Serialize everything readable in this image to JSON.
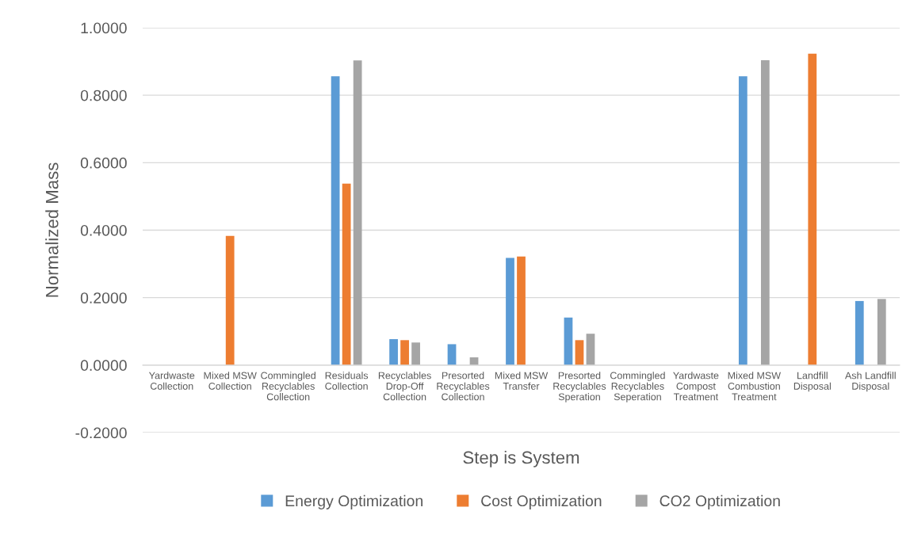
{
  "chart_data": {
    "type": "bar",
    "xlabel": "Step is System",
    "ylabel": "Normalized Mass",
    "categories": [
      "Yardwaste\nCollection",
      "Mixed MSW\nCollection",
      "Commingled\nRecyclables\nCollection",
      "Residuals\nCollection",
      "Recyclables\nDrop-Off\nCollection",
      "Presorted\nRecyclables\nCollection",
      "Mixed MSW\nTransfer",
      "Presorted\nRecyclables\nSperation",
      "Commingled\nRecyclables\nSeperation",
      "Yardwaste\nCompost\nTreatment",
      "Mixed MSW\nCombustion\nTreatment",
      "Landfill\nDisposal",
      "Ash Landfill\nDisposal"
    ],
    "series": [
      {
        "name": "Energy Optimization",
        "color": "#5b9bd5",
        "values": [
          0,
          0,
          0,
          0.856,
          0.077,
          0.062,
          0.318,
          0.141,
          0,
          0,
          0.856,
          0,
          0.19
        ]
      },
      {
        "name": "Cost Optimization",
        "color": "#ed7d31",
        "values": [
          0,
          0.383,
          0,
          0.538,
          0.074,
          0,
          0.322,
          0.074,
          0,
          0,
          0,
          0.923,
          0
        ]
      },
      {
        "name": "CO2 Optimization",
        "color": "#a5a5a5",
        "values": [
          0,
          0,
          0,
          0.903,
          0.067,
          0.023,
          0,
          0.093,
          0,
          0,
          0.904,
          0,
          0.196
        ]
      }
    ],
    "ylim": [
      -0.2,
      1.0
    ],
    "yticks": [
      {
        "value": -0.2,
        "label": "-0.2000"
      },
      {
        "value": 0,
        "label": "0.0000"
      },
      {
        "value": 0.2,
        "label": "0.2000"
      },
      {
        "value": 0.4,
        "label": "0.4000"
      },
      {
        "value": 0.6,
        "label": "0.6000"
      },
      {
        "value": 0.8,
        "label": "0.8000"
      },
      {
        "value": 1.0,
        "label": "1.0000"
      }
    ],
    "grid": "y",
    "legend": "bottom"
  }
}
